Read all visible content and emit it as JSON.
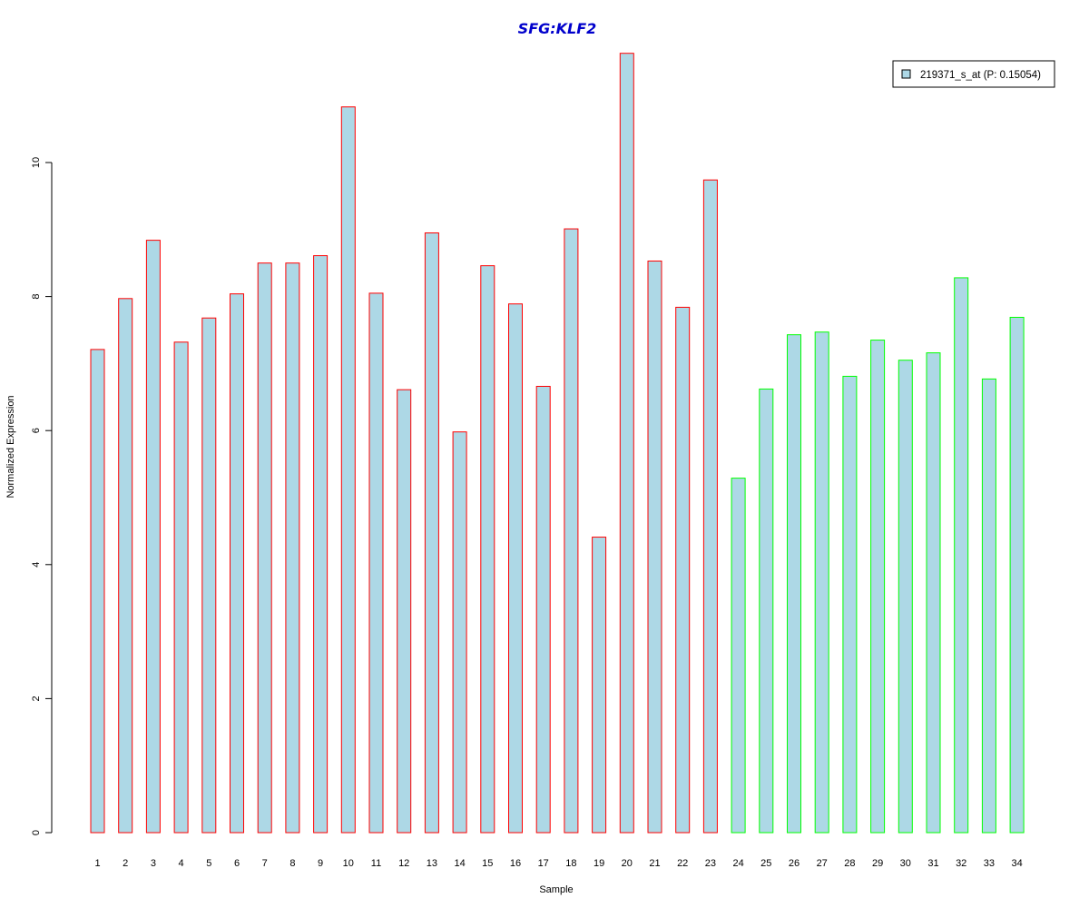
{
  "chart_data": {
    "type": "bar",
    "title": "SFG:KLF2",
    "xlabel": "Sample",
    "ylabel": "Normalized Expression",
    "ylim": [
      0,
      11.8
    ],
    "yticks": [
      0,
      2,
      4,
      6,
      8,
      10
    ],
    "ytick_labels": [
      "0",
      "2",
      "4",
      "6",
      "8",
      "10"
    ],
    "categories": [
      "1",
      "2",
      "3",
      "4",
      "5",
      "6",
      "7",
      "8",
      "9",
      "10",
      "11",
      "12",
      "13",
      "14",
      "15",
      "16",
      "17",
      "18",
      "19",
      "20",
      "21",
      "22",
      "23",
      "24",
      "25",
      "26",
      "27",
      "28",
      "29",
      "30",
      "31",
      "32",
      "33",
      "34"
    ],
    "series": [
      {
        "name": "219371_s_at (P: 0.15054)",
        "values": [
          7.21,
          7.97,
          8.84,
          7.32,
          7.68,
          8.04,
          8.5,
          8.5,
          8.61,
          10.83,
          8.05,
          6.61,
          8.95,
          5.98,
          8.46,
          7.89,
          6.66,
          9.01,
          4.41,
          11.63,
          8.53,
          7.84,
          9.74,
          5.29,
          6.62,
          7.43,
          7.47,
          6.81,
          7.35,
          7.05,
          7.16,
          8.28,
          6.77,
          7.69
        ],
        "groups": [
          "a",
          "a",
          "a",
          "a",
          "a",
          "a",
          "a",
          "a",
          "a",
          "a",
          "a",
          "a",
          "a",
          "a",
          "a",
          "a",
          "a",
          "a",
          "a",
          "a",
          "a",
          "a",
          "a",
          "b",
          "b",
          "b",
          "b",
          "b",
          "b",
          "b",
          "b",
          "b",
          "b",
          "b"
        ]
      }
    ],
    "legend_position": "top-right",
    "grid": false,
    "colors": {
      "bar_fill": "#add8e6",
      "group_a_border": "#ff0000",
      "group_b_border": "#00ff00",
      "title": "#0000cc"
    }
  }
}
